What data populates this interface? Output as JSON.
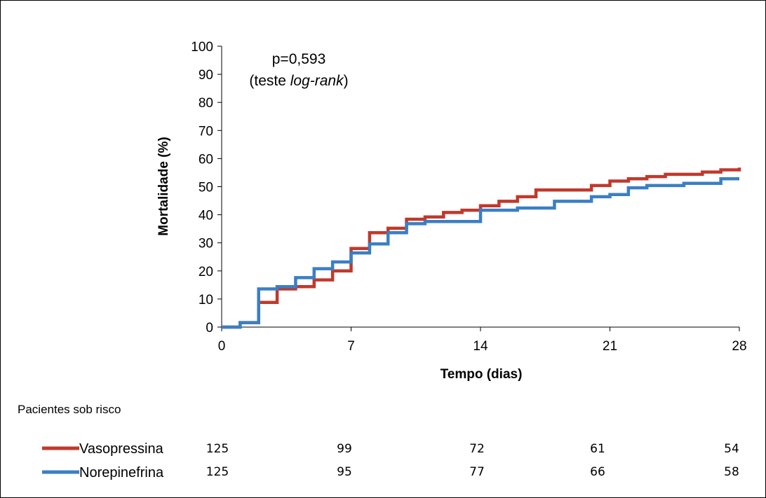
{
  "chart_data": {
    "type": "line",
    "step": true,
    "xlabel": "Tempo (dias)",
    "ylabel": "Mortalidade (%)",
    "xlim": [
      0,
      28
    ],
    "ylim": [
      0,
      100
    ],
    "x_ticks": [
      0,
      7,
      14,
      21,
      28
    ],
    "y_ticks": [
      0,
      10,
      20,
      30,
      40,
      50,
      60,
      70,
      80,
      90,
      100
    ],
    "grid": false,
    "annotation": {
      "line1": "p=0,593",
      "line2_prefix": "(teste ",
      "line2_italic": "log-rank",
      "line2_suffix": ")"
    },
    "series": [
      {
        "name": "Vasopressina",
        "color": "#c0392b",
        "points": [
          [
            0,
            0
          ],
          [
            1,
            1.6
          ],
          [
            2,
            8.8
          ],
          [
            3,
            13.6
          ],
          [
            4,
            14.4
          ],
          [
            5,
            16.8
          ],
          [
            6,
            20
          ],
          [
            7,
            28
          ],
          [
            8,
            33.6
          ],
          [
            9,
            35.2
          ],
          [
            10,
            38.4
          ],
          [
            11,
            39.2
          ],
          [
            12,
            40.8
          ],
          [
            13,
            41.6
          ],
          [
            14,
            43.2
          ],
          [
            15,
            44.8
          ],
          [
            16,
            46.4
          ],
          [
            17,
            48.8
          ],
          [
            20,
            50.4
          ],
          [
            21,
            52
          ],
          [
            22,
            52.8
          ],
          [
            23,
            53.6
          ],
          [
            24,
            54.4
          ],
          [
            26,
            55.2
          ],
          [
            27,
            56
          ],
          [
            28,
            56.8
          ]
        ]
      },
      {
        "name": "Norepinefrina",
        "color": "#3a7fc4",
        "points": [
          [
            0,
            0
          ],
          [
            1,
            1.6
          ],
          [
            2,
            13.6
          ],
          [
            3,
            14.4
          ],
          [
            4,
            17.6
          ],
          [
            5,
            20.8
          ],
          [
            6,
            23.2
          ],
          [
            7,
            26.4
          ],
          [
            8,
            29.6
          ],
          [
            9,
            33.6
          ],
          [
            10,
            36.8
          ],
          [
            11,
            37.6
          ],
          [
            14,
            41.6
          ],
          [
            16,
            42.4
          ],
          [
            18,
            44.8
          ],
          [
            20,
            46.4
          ],
          [
            21,
            47.2
          ],
          [
            22,
            49.6
          ],
          [
            23,
            50.4
          ],
          [
            25,
            51.2
          ],
          [
            27,
            52.8
          ],
          [
            28,
            52.8
          ]
        ]
      }
    ]
  },
  "risk_table": {
    "title": "Pacientes sob risco",
    "rows": [
      {
        "label": "Vasopressina",
        "color": "#c0392b",
        "values": [
          "125",
          "99",
          "72",
          "61",
          "54"
        ]
      },
      {
        "label": "Norepinefrina",
        "color": "#3a7fc4",
        "values": [
          "125",
          "95",
          "77",
          "66",
          "58"
        ]
      }
    ]
  }
}
